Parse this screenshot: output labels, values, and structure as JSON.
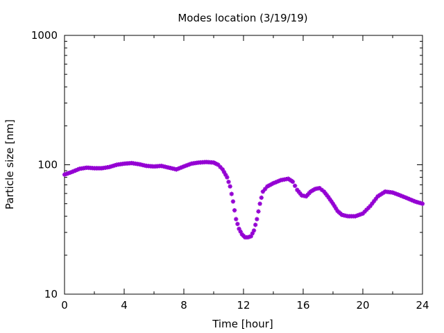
{
  "chart_data": {
    "type": "scatter",
    "title": "Modes location (3/19/19)",
    "xlabel": "Time [hour]",
    "ylabel": "Particle size [nm]",
    "xlim": [
      0,
      24
    ],
    "ylim": [
      10,
      1000
    ],
    "yscale": "log",
    "x_ticks": [
      "0",
      "4",
      "8",
      "12",
      "16",
      "20",
      "24"
    ],
    "y_ticks": [
      "10",
      "100",
      "1000"
    ],
    "grid": false,
    "marker_color": "#9400d3",
    "series": [
      {
        "x": [
          0,
          0.5,
          1,
          1.5,
          2,
          2.5,
          3,
          3.5,
          4,
          4.5,
          5,
          5.5,
          6,
          6.5,
          7,
          7.5,
          8,
          8.5,
          9,
          9.5,
          10,
          10.3,
          10.6,
          10.9,
          11.1,
          11.3,
          11.5,
          11.7,
          11.9,
          12.1,
          12.3,
          12.5,
          12.7,
          12.9,
          13.1,
          13.3,
          13.6,
          14,
          14.5,
          15,
          15.3,
          15.6,
          15.9,
          16.2,
          16.5,
          16.8,
          17.1,
          17.4,
          17.7,
          18,
          18.3,
          18.6,
          19,
          19.5,
          20,
          20.5,
          21,
          21.5,
          22,
          22.5,
          23,
          23.5,
          24
        ],
        "y": [
          84,
          88,
          93,
          95,
          94,
          94,
          96,
          100,
          102,
          103,
          101,
          98,
          97,
          98,
          95,
          92,
          97,
          102,
          104,
          105,
          104,
          100,
          92,
          80,
          68,
          52,
          38,
          32,
          29,
          27.5,
          27.5,
          28,
          31,
          38,
          50,
          62,
          68,
          72,
          76,
          78,
          74,
          64,
          58,
          57,
          62,
          65,
          66,
          62,
          56,
          50,
          44,
          41,
          40,
          40,
          42,
          48,
          57,
          62,
          61,
          58,
          55,
          52,
          50
        ]
      }
    ]
  }
}
